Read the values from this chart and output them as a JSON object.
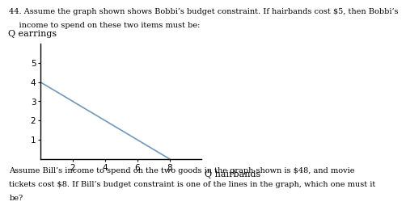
{
  "title_line1": "44. Assume the graph shown shows Bobbi’s budget constraint. If hairbands cost $5, then Bobbi’s",
  "title_line2": "    income to spend on these two items must be:",
  "footer_line1": "Assume Bill’s income to spend on the two goods in the graph shown is $48, and movie",
  "footer_line2": "tickets cost $8. If Bill’s budget constraint is one of the lines in the graph, which one must it",
  "footer_line3": "be?",
  "xlabel": "Q hairbands",
  "ylabel": "Q earrings",
  "x_ticks": [
    2,
    4,
    6,
    8
  ],
  "y_ticks": [
    1,
    2,
    3,
    4,
    5
  ],
  "xlim": [
    0,
    10
  ],
  "ylim": [
    0,
    6
  ],
  "line_x": [
    0,
    8
  ],
  "line_y": [
    4,
    0
  ],
  "line_color": "#7098b8",
  "line_width": 1.2,
  "axis_color": "#000000",
  "background_color": "#ffffff",
  "title_fontsize": 7.0,
  "footer_fontsize": 7.0,
  "axis_label_fontsize": 8.0,
  "tick_fontsize": 7.5
}
